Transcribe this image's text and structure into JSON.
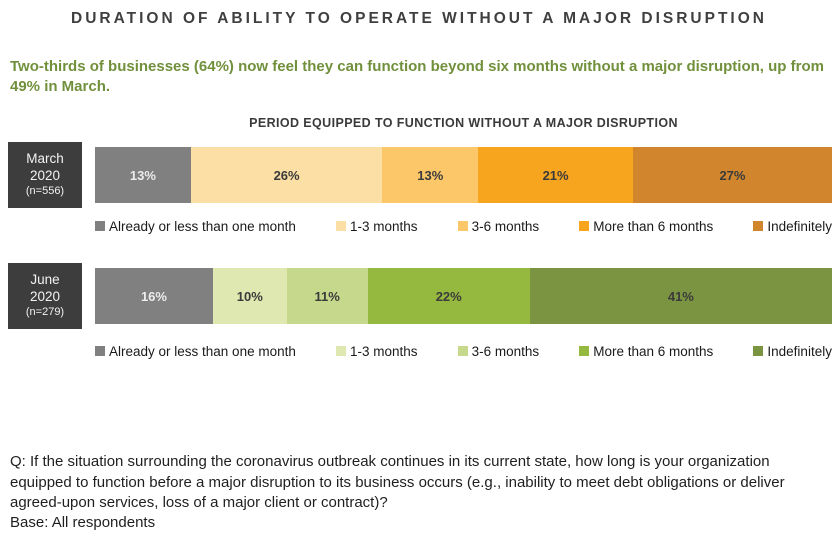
{
  "title": "DURATION OF ABILITY TO OPERATE WITHOUT A MAJOR DISRUPTION",
  "subtitle": "Two-thirds of businesses (64%) now feel they can function beyond six months without a major disruption, up from 49% in March.",
  "chart_title": "PERIOD EQUIPPED TO FUNCTION WITHOUT A MAJOR DISRUPTION",
  "chart_data": {
    "type": "bar",
    "stacked": true,
    "orientation": "horizontal",
    "title": "PERIOD EQUIPPED TO FUNCTION WITHOUT A MAJOR DISRUPTION",
    "value_suffix": "%",
    "axis_range": [
      0,
      100
    ],
    "grid": false,
    "legend_position": "below-each-bar",
    "categories": [
      "Already or less than one month",
      "1-3 months",
      "3-6 months",
      "More than 6 months",
      "Indefinitely"
    ],
    "series": [
      {
        "name": "March 2020",
        "label_lines": [
          "March",
          "2020",
          "(n=556)"
        ],
        "n": 556,
        "values": [
          13,
          26,
          13,
          21,
          27
        ],
        "palette": [
          "#808080",
          "#FBDFA4",
          "#FBC768",
          "#F7A41E",
          "#D1862D"
        ],
        "text_colors": [
          "#ECECEC",
          "#3B3B3B",
          "#3B3B3B",
          "#3B3B3B",
          "#3B3B3B"
        ]
      },
      {
        "name": "June 2020",
        "label_lines": [
          "June",
          "2020",
          "(n=279)"
        ],
        "n": 279,
        "values": [
          16,
          10,
          11,
          22,
          41
        ],
        "palette": [
          "#808080",
          "#DEE8B0",
          "#C6D88C",
          "#95B93E",
          "#7A9441"
        ],
        "text_colors": [
          "#ECECEC",
          "#3B3B3B",
          "#3B3B3B",
          "#3B3B3B",
          "#3B3B3B"
        ]
      }
    ]
  },
  "colors": {
    "row_label_bg": "#3D3D3D",
    "title_color": "#3F3F3F",
    "subtitle_color": "#71903C"
  },
  "footnote_q": "Q: If the situation surrounding the coronavirus outbreak continues in its current state, how long is your organization equipped to function before a major disruption to its business occurs (e.g., inability to meet debt obligations or deliver agreed-upon services, loss of a major client or contract)?",
  "footnote_base": "Base: All respondents"
}
